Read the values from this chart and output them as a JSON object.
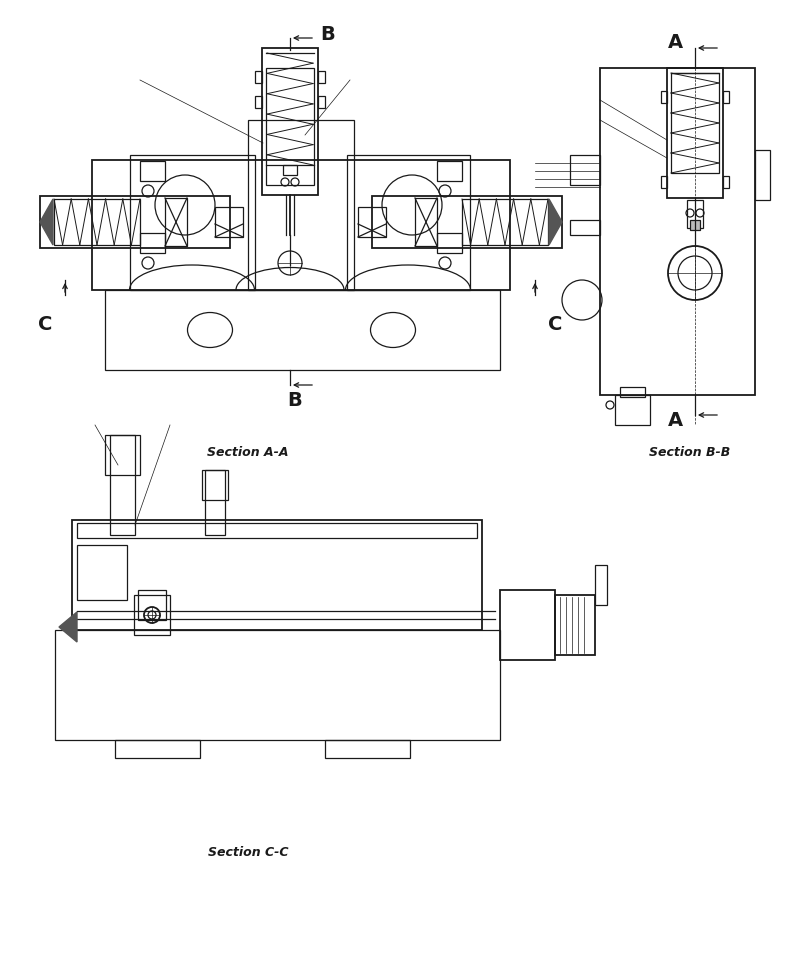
{
  "bg_color": "#ffffff",
  "lc": "#1a1a1a",
  "lw": 0.9,
  "lw_thin": 0.5,
  "lw_thick": 1.3,
  "section_aa_label": "Section A-A",
  "section_bb_label": "Section B-B",
  "section_cc_label": "Section C-C",
  "label_A": "A",
  "label_B": "B",
  "label_C": "C",
  "font_size_label": 14,
  "font_size_section": 9
}
